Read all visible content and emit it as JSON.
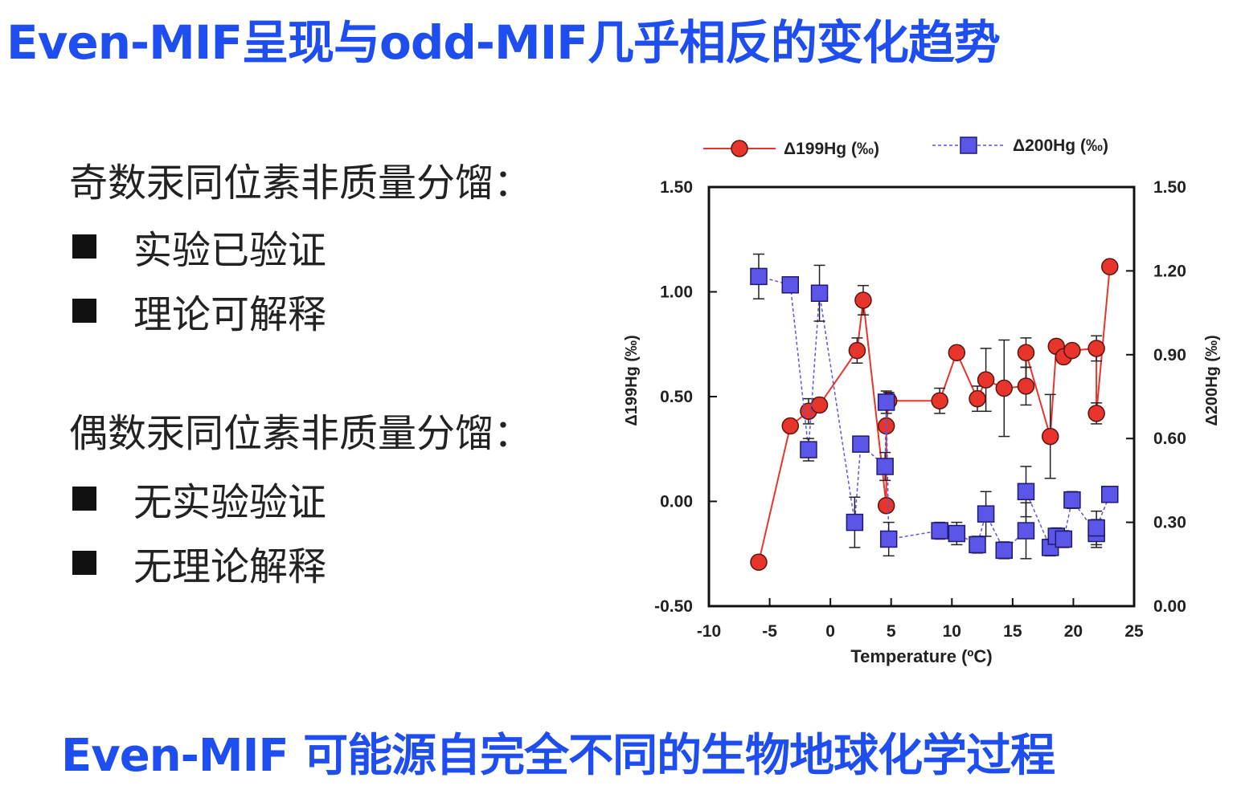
{
  "title": "Even-MIF呈现与odd-MIF几乎相反的变化趋势",
  "left_panel": {
    "odd": {
      "heading": "奇数汞同位素非质量分馏：",
      "items": [
        "实验已验证",
        "理论可解释"
      ]
    },
    "even": {
      "heading": "偶数汞同位素非质量分馏：",
      "items": [
        "无实验验证",
        "无理论解释"
      ]
    }
  },
  "footer": "Even-MIF 可能源自完全不同的生物地球化学过程",
  "chart_data": {
    "type": "scatter",
    "xlabel": "Temperature (ºC)",
    "xlim": [
      -10,
      25
    ],
    "xticks": [
      "-10",
      "-5",
      "0",
      "5",
      "10",
      "15",
      "20",
      "25"
    ],
    "ylabel_left": "Δ199Hg (‰)",
    "ylim_left": [
      -0.5,
      1.5
    ],
    "yticks_left": [
      "1.50",
      "1.00",
      "0.50",
      "0.00",
      "-0.50"
    ],
    "ylabel_right": "Δ200Hg (‰)",
    "ylim_right": [
      0.0,
      1.5
    ],
    "yticks_right": [
      "1.50",
      "1.20",
      "0.90",
      "0.60",
      "0.30",
      "0.00"
    ],
    "series": [
      {
        "name": "Δ199Hg (‰)",
        "axis": "left",
        "color": "#e8352c",
        "marker": "circle",
        "line": "solid",
        "points": [
          {
            "x": -5.9,
            "y": -0.29,
            "err": 0.03
          },
          {
            "x": -3.3,
            "y": 0.36,
            "err": 0.0
          },
          {
            "x": -1.8,
            "y": 0.43,
            "err": 0.06
          },
          {
            "x": -0.9,
            "y": 0.46,
            "err": 0.03
          },
          {
            "x": 2.2,
            "y": 0.72,
            "err": 0.06
          },
          {
            "x": 2.7,
            "y": 0.96,
            "err": 0.07
          },
          {
            "x": 4.6,
            "y": -0.02,
            "err": 0.02
          },
          {
            "x": 4.6,
            "y": 0.36,
            "err": 0.0
          },
          {
            "x": 4.8,
            "y": 0.48,
            "err": 0.04
          },
          {
            "x": 9.0,
            "y": 0.48,
            "err": 0.06
          },
          {
            "x": 10.4,
            "y": 0.71,
            "err": 0.02
          },
          {
            "x": 12.1,
            "y": 0.49,
            "err": 0.06
          },
          {
            "x": 12.8,
            "y": 0.58,
            "err": 0.15
          },
          {
            "x": 14.3,
            "y": 0.54,
            "err": 0.23
          },
          {
            "x": 16.1,
            "y": 0.55,
            "err": 0.09
          },
          {
            "x": 16.1,
            "y": 0.71,
            "err": 0.07
          },
          {
            "x": 18.1,
            "y": 0.31,
            "err": 0.2
          },
          {
            "x": 18.6,
            "y": 0.74,
            "err": 0.02
          },
          {
            "x": 19.2,
            "y": 0.69,
            "err": 0.02
          },
          {
            "x": 19.9,
            "y": 0.72,
            "err": 0.02
          },
          {
            "x": 21.9,
            "y": 0.73,
            "err": 0.06
          },
          {
            "x": 21.9,
            "y": 0.42,
            "err": 0.05
          },
          {
            "x": 23.0,
            "y": 1.12,
            "err": 0.02
          }
        ]
      },
      {
        "name": "Δ200Hg (‰)",
        "axis": "right",
        "color": "#5b55e8",
        "marker": "square",
        "line": "dashed",
        "points": [
          {
            "x": -5.9,
            "y": 1.18,
            "err": 0.08
          },
          {
            "x": -3.3,
            "y": 1.15,
            "err": 0.0
          },
          {
            "x": -1.8,
            "y": 0.56,
            "err": 0.04
          },
          {
            "x": -0.9,
            "y": 1.12,
            "err": 0.1
          },
          {
            "x": 2.0,
            "y": 0.3,
            "err": 0.09
          },
          {
            "x": 2.5,
            "y": 0.58,
            "err": 0.0
          },
          {
            "x": 4.5,
            "y": 0.5,
            "err": 0.05
          },
          {
            "x": 4.6,
            "y": 0.73,
            "err": 0.04
          },
          {
            "x": 4.8,
            "y": 0.24,
            "err": 0.06
          },
          {
            "x": 9.0,
            "y": 0.27,
            "err": 0.03
          },
          {
            "x": 10.4,
            "y": 0.26,
            "err": 0.04
          },
          {
            "x": 12.1,
            "y": 0.22,
            "err": 0.03
          },
          {
            "x": 12.8,
            "y": 0.33,
            "err": 0.08
          },
          {
            "x": 14.3,
            "y": 0.2,
            "err": 0.03
          },
          {
            "x": 16.1,
            "y": 0.27,
            "err": 0.1
          },
          {
            "x": 16.1,
            "y": 0.41,
            "err": 0.09
          },
          {
            "x": 18.1,
            "y": 0.21,
            "err": 0.03
          },
          {
            "x": 18.6,
            "y": 0.25,
            "err": 0.03
          },
          {
            "x": 19.2,
            "y": 0.24,
            "err": 0.03
          },
          {
            "x": 19.9,
            "y": 0.38,
            "err": 0.03
          },
          {
            "x": 21.9,
            "y": 0.26,
            "err": 0.05
          },
          {
            "x": 21.9,
            "y": 0.28,
            "err": 0.06
          },
          {
            "x": 23.0,
            "y": 0.4,
            "err": 0.02
          }
        ]
      }
    ],
    "legend": "top",
    "grid": false
  }
}
